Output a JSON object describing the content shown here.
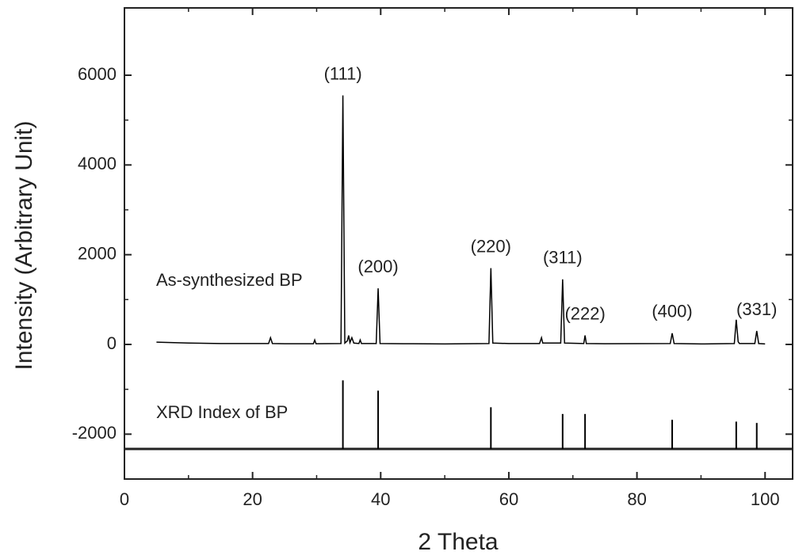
{
  "chart_data": {
    "type": "line",
    "x_label": "2 Theta",
    "y_label": "Intensity (Arbitrary Unit)",
    "xlim": [
      0,
      104.3
    ],
    "ylim": [
      -3000,
      7500
    ],
    "xticks": [
      0,
      20,
      40,
      60,
      80,
      100
    ],
    "yticks": [
      -2000,
      0,
      2000,
      4000,
      6000
    ],
    "series": [
      {
        "name": "As-synthesized BP",
        "color": "#000000",
        "x": [
          5,
          10,
          15,
          20,
          22.5,
          22.8,
          23.1,
          25,
          29.5,
          29.7,
          29.9,
          33.8,
          34.1,
          34.4,
          34.8,
          35.0,
          35.2,
          35.5,
          35.8,
          36.6,
          36.8,
          37.0,
          39.3,
          39.6,
          39.9,
          45,
          50,
          56.9,
          57.2,
          57.5,
          60,
          64.8,
          65.1,
          65.3,
          68.1,
          68.4,
          68.7,
          71.7,
          71.9,
          72.1,
          75,
          85.2,
          85.5,
          85.8,
          90,
          95.2,
          95.5,
          95.8,
          96,
          98.4,
          98.7,
          99,
          100
        ],
        "values": [
          50,
          30,
          20,
          20,
          20,
          150,
          20,
          15,
          15,
          100,
          15,
          20,
          5550,
          30,
          80,
          200,
          40,
          150,
          30,
          20,
          100,
          20,
          20,
          1250,
          20,
          15,
          10,
          20,
          1700,
          30,
          20,
          20,
          150,
          30,
          30,
          1450,
          30,
          20,
          200,
          20,
          15,
          20,
          250,
          20,
          10,
          20,
          550,
          60,
          20,
          20,
          300,
          20,
          10
        ]
      },
      {
        "name": "XRD Index of BP",
        "color": "#000000",
        "baseline": -2330,
        "x": [
          34.1,
          39.6,
          57.2,
          68.4,
          71.9,
          85.5,
          95.5,
          98.7
        ],
        "values": [
          -800,
          -1030,
          -1400,
          -1550,
          -1550,
          -1680,
          -1720,
          -1750
        ]
      }
    ],
    "annotations": [
      {
        "text": "(111)",
        "x": 34.1
      },
      {
        "text": "(200)",
        "x": 39.6
      },
      {
        "text": "(220)",
        "x": 57.2
      },
      {
        "text": "(311)",
        "x": 68.4
      },
      {
        "text": "(222)",
        "x": 71.9
      },
      {
        "text": "(400)",
        "x": 85.5
      },
      {
        "text": "(331)",
        "x": 98.7
      }
    ]
  }
}
